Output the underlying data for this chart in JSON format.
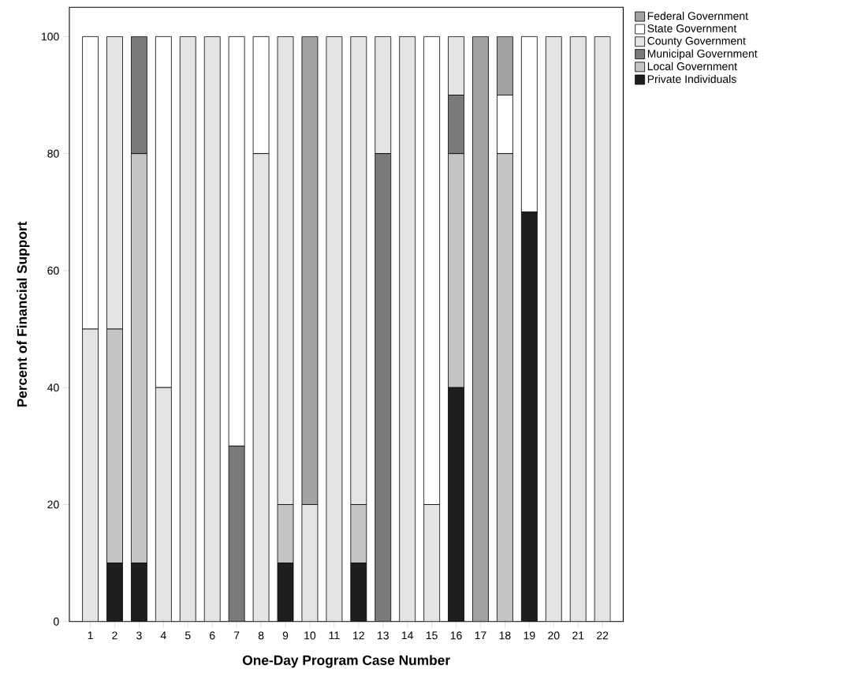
{
  "chart_data": {
    "type": "bar",
    "stacked": true,
    "xlabel": "One-Day Program Case Number",
    "ylabel": "Percent of Financial Support",
    "categories": [
      "1",
      "2",
      "3",
      "4",
      "5",
      "6",
      "7",
      "8",
      "9",
      "10",
      "11",
      "12",
      "13",
      "14",
      "15",
      "16",
      "17",
      "18",
      "19",
      "20",
      "21",
      "22"
    ],
    "ylim": [
      0,
      105
    ],
    "yticks": [
      0,
      20,
      40,
      60,
      80,
      100
    ],
    "legend": "right",
    "grid": false,
    "series": [
      {
        "name": "Private Individuals",
        "color": "#1e1e1e",
        "values": [
          0,
          10,
          10,
          0,
          0,
          0,
          0,
          0,
          10,
          0,
          0,
          10,
          0,
          0,
          0,
          40,
          0,
          0,
          70,
          0,
          0,
          0
        ]
      },
      {
        "name": "Local Government",
        "color": "#c4c4c4",
        "values": [
          0,
          40,
          70,
          0,
          0,
          0,
          0,
          0,
          10,
          0,
          0,
          10,
          0,
          0,
          0,
          40,
          0,
          80,
          0,
          0,
          0,
          0
        ]
      },
      {
        "name": "Municipal Government",
        "color": "#7a7a7a",
        "values": [
          0,
          0,
          20,
          0,
          0,
          0,
          30,
          0,
          0,
          0,
          0,
          0,
          80,
          0,
          0,
          10,
          0,
          0,
          0,
          0,
          0,
          0
        ]
      },
      {
        "name": "County Government",
        "color": "#e4e4e4",
        "values": [
          50,
          50,
          0,
          40,
          100,
          100,
          0,
          80,
          80,
          20,
          100,
          80,
          20,
          100,
          20,
          10,
          0,
          0,
          0,
          100,
          100,
          100
        ]
      },
      {
        "name": "State Government",
        "color": "#ffffff",
        "values": [
          50,
          0,
          0,
          60,
          0,
          0,
          70,
          20,
          0,
          0,
          0,
          0,
          0,
          0,
          80,
          0,
          0,
          10,
          30,
          0,
          0,
          0
        ]
      },
      {
        "name": "Federal Government",
        "color": "#a2a2a2",
        "values": [
          0,
          0,
          0,
          0,
          0,
          0,
          0,
          0,
          0,
          80,
          0,
          0,
          0,
          0,
          0,
          0,
          100,
          10,
          0,
          0,
          0,
          0
        ]
      }
    ]
  }
}
